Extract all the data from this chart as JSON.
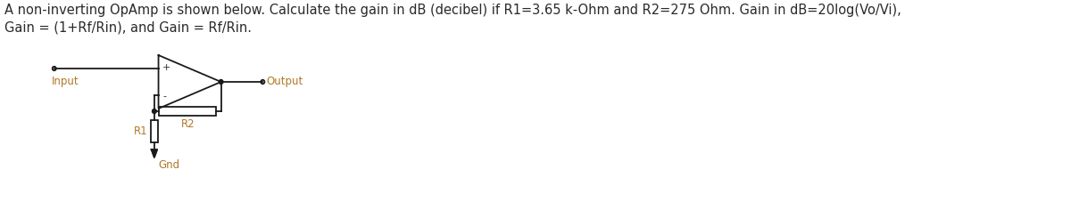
{
  "text_line1": "A non-inverting OpAmp is shown below. Calculate the gain in dB (decibel) if R1=3.65 k-Ohm and R2=275 Ohm. Gain in dB=20log(Vo/Vi),",
  "text_line2": "Gain = (1+Rf/Rin), and Gain = Rf/Rin.",
  "label_input": "Input",
  "label_output": "Output",
  "label_r1": "R1",
  "label_r2": "R2",
  "label_gnd": "Gnd",
  "label_plus": "+",
  "label_minus": "-",
  "text_color": "#2a2a2a",
  "label_color": "#b07828",
  "circuit_color": "#1a1a1a",
  "bg_color": "#ffffff",
  "font_size_text": 10.5,
  "font_size_label": 8.5,
  "font_size_pm": 8.0
}
